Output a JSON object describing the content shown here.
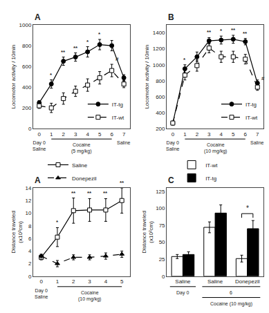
{
  "chart_data": [
    {
      "type": "line",
      "title": "A",
      "ylabel": "Locomotor activity / 10min",
      "x": [
        0,
        1,
        2,
        3,
        4,
        5,
        6,
        7
      ],
      "xlim": [
        -0.5,
        7.5
      ],
      "xticks": [
        0,
        1,
        2,
        3,
        4,
        5,
        6,
        7
      ],
      "ylim": [
        0,
        1000
      ],
      "yticks": [
        0,
        200,
        400,
        600,
        800,
        1000
      ],
      "grid": false,
      "legend": "lower right",
      "series": [
        {
          "name": "IT-tg",
          "color": "black",
          "marker": "circle",
          "line_style": "solid",
          "values": [
            250,
            430,
            650,
            690,
            740,
            810,
            800,
            490
          ],
          "error": [
            20,
            40,
            40,
            40,
            50,
            50,
            50,
            30
          ]
        },
        {
          "name": "IT-wt",
          "color": "black",
          "marker": "square-open",
          "line_style": "dashed",
          "values": [
            220,
            200,
            290,
            360,
            420,
            490,
            560,
            430
          ],
          "error": [
            25,
            45,
            55,
            50,
            60,
            60,
            60,
            35
          ]
        }
      ],
      "annotations": [
        {
          "x": 1,
          "text": "*",
          "series": "IT-tg"
        },
        {
          "x": 2,
          "text": "**",
          "series": "IT-tg"
        },
        {
          "x": 3,
          "text": "**",
          "series": "IT-tg"
        },
        {
          "x": 4,
          "text": "*",
          "series": "IT-tg"
        },
        {
          "x": 5,
          "text": "*",
          "series": "IT-tg"
        },
        {
          "x": 6,
          "text": "#",
          "series": "IT-wt"
        },
        {
          "x": 0,
          "text": "Day 0\nSaline"
        },
        {
          "x": [
            1,
            6
          ],
          "text": "Cocaine\n(5 mg/kg)"
        },
        {
          "x": 7,
          "text": "Saline"
        }
      ]
    },
    {
      "type": "line",
      "title": "B",
      "ylabel": "Locomotor activity / 10min",
      "x": [
        0,
        1,
        2,
        3,
        4,
        5,
        6,
        7
      ],
      "xlim": [
        -0.5,
        7.5
      ],
      "xticks": [
        0,
        1,
        2,
        3,
        4,
        5,
        6,
        7
      ],
      "ylim": [
        200,
        1500
      ],
      "yticks": [
        200,
        400,
        600,
        800,
        1000,
        1200,
        1400
      ],
      "grid": false,
      "legend": "lower right",
      "series": [
        {
          "name": "IT-tg",
          "color": "black",
          "marker": "circle",
          "line_style": "solid",
          "values": [
            270,
            950,
            1100,
            1300,
            1310,
            1320,
            1290,
            770
          ],
          "error": [
            20,
            50,
            60,
            40,
            50,
            50,
            40,
            40
          ]
        },
        {
          "name": "IT-wt",
          "color": "black",
          "marker": "square-open",
          "line_style": "dashed",
          "values": [
            270,
            870,
            990,
            1210,
            1100,
            1100,
            1070,
            720
          ],
          "error": [
            25,
            60,
            70,
            60,
            70,
            70,
            60,
            40
          ]
        }
      ],
      "annotations": [
        {
          "x": 1,
          "text": "*",
          "series": "IT-tg"
        },
        {
          "x": 3,
          "text": "**",
          "series": "IT-tg"
        },
        {
          "x": 4,
          "text": "*",
          "series": "IT-tg"
        },
        {
          "x": 5,
          "text": "**",
          "series": "IT-tg"
        },
        {
          "x": 6,
          "text": "**",
          "series": "IT-tg"
        },
        {
          "x": 7,
          "text": "#",
          "series": "IT-wt"
        },
        {
          "x": 0,
          "text": "Day 0\nSaline"
        },
        {
          "x": [
            1,
            6
          ],
          "text": "Cocaine\n(10 mg/kg)"
        },
        {
          "x": 7,
          "text": "Saline"
        }
      ]
    },
    {
      "type": "line",
      "title": "A",
      "ylabel": "Distance traveled\n(x10³cm)",
      "x": [
        0,
        1,
        2,
        3,
        4,
        5
      ],
      "xlim": [
        -0.5,
        5.5
      ],
      "xticks": [
        0,
        1,
        2,
        3,
        4,
        5
      ],
      "ylim": [
        0,
        14
      ],
      "yticks": [
        0,
        2,
        4,
        6,
        8,
        10,
        12,
        14
      ],
      "grid": false,
      "legend": "upper left",
      "series": [
        {
          "name": "Saline",
          "color": "black",
          "marker": "square-open",
          "line_style": "solid",
          "values": [
            3.0,
            6.2,
            10.4,
            10.5,
            10.5,
            12.0
          ],
          "error": [
            0.4,
            1.5,
            2.0,
            1.8,
            1.8,
            2.0
          ]
        },
        {
          "name": "Donepezil",
          "color": "black",
          "marker": "triangle-up",
          "line_style": "dashed",
          "values": [
            3.2,
            2.0,
            3.0,
            3.0,
            3.2,
            3.5
          ],
          "error": [
            0.3,
            0.5,
            0.4,
            0.4,
            0.5,
            0.5
          ]
        }
      ],
      "annotations": [
        {
          "x": 1,
          "text": "*",
          "series": "Saline"
        },
        {
          "x": 2,
          "text": "**",
          "series": "Saline"
        },
        {
          "x": 3,
          "text": "**",
          "series": "Saline"
        },
        {
          "x": 4,
          "text": "**",
          "series": "Saline"
        },
        {
          "x": 5,
          "text": "**",
          "series": "Saline"
        },
        {
          "x": 0,
          "text": "Day 0\nSaline"
        },
        {
          "x": [
            1,
            5
          ],
          "text": "Cocaine\n(10 mg/kg)"
        }
      ]
    },
    {
      "type": "bar",
      "title": "C",
      "ylabel": "Distance traveled\n(x10²cm)",
      "categories": [
        "Saline",
        "Saline",
        "Donepezil"
      ],
      "ylim": [
        0,
        130
      ],
      "yticks": [
        0,
        25,
        50,
        75,
        100,
        125
      ],
      "grid": false,
      "legend": "upper left",
      "series": [
        {
          "name": "IT-wt",
          "color": "white",
          "values": [
            29,
            72,
            26
          ],
          "error": [
            3,
            8,
            5
          ]
        },
        {
          "name": "IT-tg",
          "color": "black",
          "values": [
            32,
            93,
            70
          ],
          "error": [
            4,
            12,
            12
          ]
        }
      ],
      "annotations": [
        {
          "x": 2,
          "text": "*",
          "series": [
            "IT-wt",
            "IT-tg"
          ]
        },
        {
          "x": 0,
          "text": "Day 0"
        },
        {
          "x": [
            1,
            2
          ],
          "text": "6"
        },
        {
          "x": [
            1,
            2
          ],
          "text": "Cocaine (10 mg/kg)"
        }
      ]
    }
  ]
}
